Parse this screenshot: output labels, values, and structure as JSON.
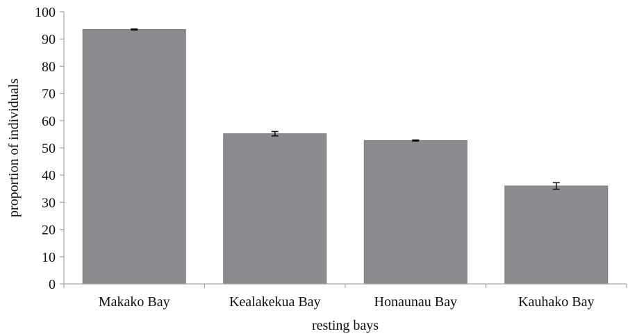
{
  "chart_data": {
    "type": "bar",
    "title": "",
    "xlabel": "resting bays",
    "ylabel": "proportion of individuals",
    "categories": [
      "Makako Bay",
      "Kealakekua Bay",
      "Honaunau Bay",
      "Kauhako Bay"
    ],
    "series": [
      {
        "values": [
          93.5,
          55.2,
          52.7,
          36.0
        ],
        "errors": [
          0.2,
          0.8,
          0.2,
          1.2
        ]
      }
    ],
    "ylim": [
      0,
      100
    ],
    "yticks": [
      0,
      10,
      20,
      30,
      40,
      50,
      60,
      70,
      80,
      90,
      100
    ],
    "grid": false,
    "legend": "none",
    "colors": {
      "bar": "#8b8c90",
      "bar_edge": "#7a7b7f",
      "axis": "#a6a6a6",
      "text": "#111111"
    }
  }
}
